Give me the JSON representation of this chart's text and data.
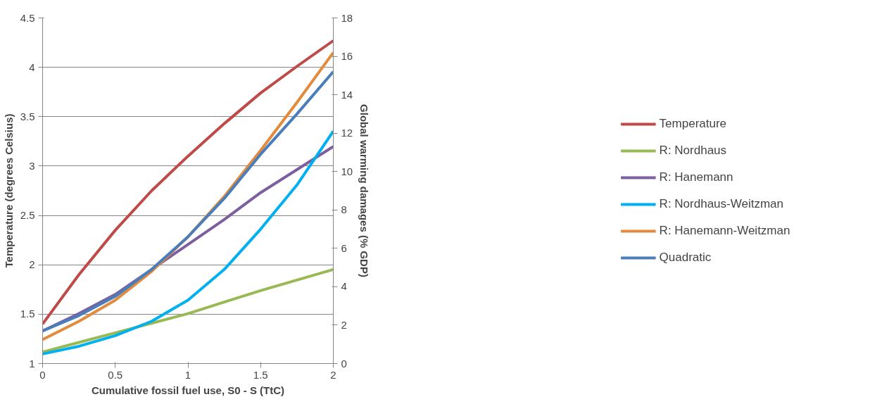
{
  "chart_data": {
    "type": "line",
    "xlabel": "Cumulative fossil fuel use, S0 - S (TtC)",
    "ylabel": "Temperature (degrees Celsius)",
    "y2label": "Global warming damages (% GDP)",
    "x": [
      0,
      0.25,
      0.5,
      0.75,
      1,
      1.25,
      1.5,
      1.75,
      2
    ],
    "xlim": [
      0,
      2
    ],
    "xticks": [
      0,
      0.5,
      1,
      1.5,
      2
    ],
    "ylim": [
      1,
      4.5
    ],
    "yticks": [
      1,
      1.5,
      2,
      2.5,
      3,
      3.5,
      4,
      4.5
    ],
    "y2lim": [
      0,
      18
    ],
    "y2ticks": [
      0,
      2,
      4,
      6,
      8,
      10,
      12,
      14,
      16,
      18
    ],
    "grid": "y",
    "legend": "right",
    "marker": "none",
    "line_style": "solid",
    "series": [
      {
        "name": "Temperature",
        "color": "#be4b48",
        "values": [
          1.4,
          1.9,
          2.35,
          2.75,
          3.1,
          3.43,
          3.74,
          4.01,
          4.27
        ]
      },
      {
        "name": "R: Nordhaus",
        "color": "#98b954",
        "axis": "y2",
        "values": [
          0.6,
          1.1,
          1.6,
          2.1,
          2.6,
          3.2,
          3.8,
          4.35,
          4.9
        ]
      },
      {
        "name": "R: Hanemann",
        "color": "#7d5fa0",
        "axis": "y2",
        "values": [
          1.7,
          2.6,
          3.6,
          4.9,
          6.2,
          7.5,
          8.9,
          10.1,
          11.3
        ]
      },
      {
        "name": "R: Nordhaus-Weitzman",
        "color": "#00b0f0",
        "axis": "y2",
        "values": [
          0.5,
          0.9,
          1.45,
          2.2,
          3.3,
          4.9,
          7.0,
          9.3,
          12.1
        ]
      },
      {
        "name": "R: Hanemann-Weitzman",
        "color": "#e38b3c",
        "axis": "y2",
        "values": [
          1.25,
          2.2,
          3.3,
          4.8,
          6.6,
          8.7,
          11.1,
          13.6,
          16.2
        ]
      },
      {
        "name": "Quadratic",
        "color": "#4a7ebb",
        "axis": "y2",
        "values": [
          1.7,
          2.5,
          3.5,
          4.9,
          6.6,
          8.6,
          10.9,
          13.0,
          15.2
        ]
      }
    ]
  }
}
